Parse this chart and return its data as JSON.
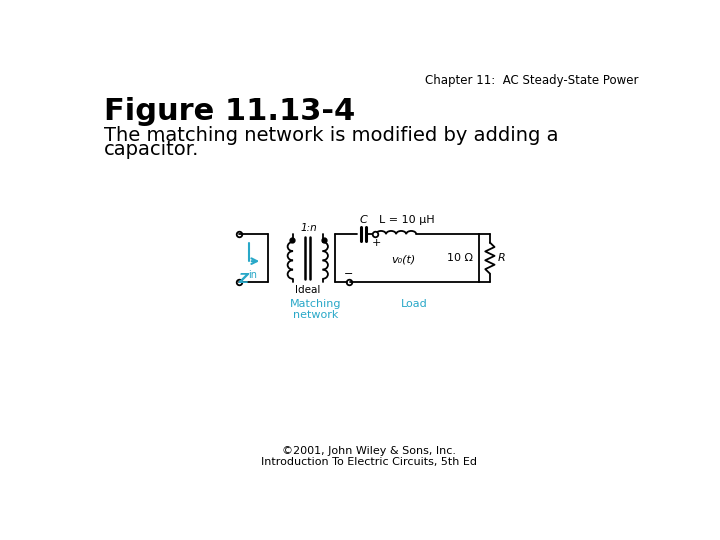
{
  "title_top_right": "Chapter 11:  AC Steady-State Power",
  "figure_title": "Figure 11.13-4",
  "subtitle_line1": "The matching network is modified by adding a",
  "subtitle_line2": "capacitor.",
  "footer_line1": "©2001, John Wiley & Sons, Inc.",
  "footer_line2": "Introduction To Electric Circuits, 5th Ed",
  "background_color": "#ffffff",
  "text_color": "#000000",
  "blue_color": "#29a8c8",
  "circuit_color": "#000000",
  "label_matching": "Matching\nnetwork",
  "label_load": "Load",
  "label_zin": "Z",
  "label_zin_sub": "in",
  "label_ideal": "Ideal",
  "label_1n": "1:n",
  "label_C": "C",
  "label_L": "L = 10 μH",
  "label_10ohm": "10 Ω",
  "label_R": "R",
  "label_v0": "v₀(t)",
  "label_plus": "+",
  "label_minus": "−"
}
